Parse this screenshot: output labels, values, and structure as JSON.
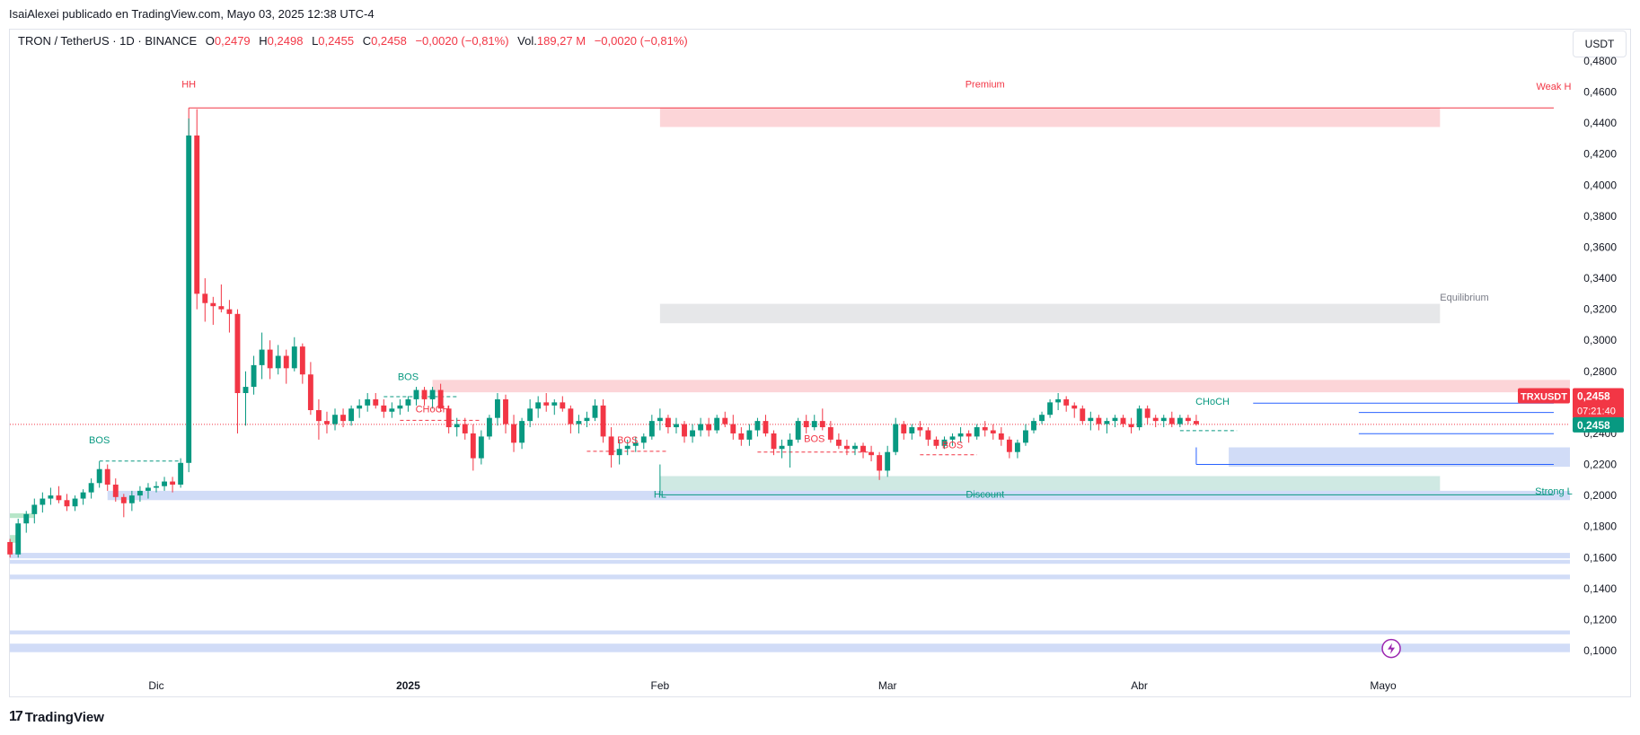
{
  "publisher": "IsaiAlexei publicado en TradingView.com, Mayo 03, 2025 12:38 UTC-4",
  "symbol": {
    "name": "TRON / TetherUS · 1D · BINANCE",
    "o_label": "O",
    "o": "0,2479",
    "h_label": "H",
    "h": "0,2498",
    "l_label": "L",
    "l": "0,2455",
    "c_label": "C",
    "c": "0,2458",
    "change": "−0,0020 (−0,81%)",
    "vol_label": "Vol.",
    "vol": "189,27 M",
    "vol_change": "−0,0020 (−0,81%)"
  },
  "currency": "USDT",
  "footer": {
    "brand": "TradingView",
    "logo_icon": "tradingview-logo-icon"
  },
  "price_tags": {
    "symbol": "TRXUSDT",
    "last": "0,2458",
    "countdown": "07:21:40",
    "last2": "0,2458"
  },
  "colors": {
    "up": "#089981",
    "down": "#f23645",
    "blue": "#2962ff",
    "zone_blue": "#d1dcf7",
    "zone_red": "#fcd5d8",
    "zone_green": "#cfe9e3",
    "zone_gray": "#e6e7e9"
  },
  "chart_data": {
    "type": "candlestick",
    "y_ticks": [
      "0,4800",
      "0,4600",
      "0,4400",
      "0,4200",
      "0,4000",
      "0,3800",
      "0,3600",
      "0,3400",
      "0,3200",
      "0,3000",
      "0,2800",
      "0,2600",
      "0,2400",
      "0,2200",
      "0,2000",
      "0,1800",
      "0,1600",
      "0,1400",
      "0,1200",
      "0,1000"
    ],
    "ylim": [
      0.09,
      0.49
    ],
    "x_labels": [
      {
        "text": "Dic",
        "date": "2024-12-01"
      },
      {
        "text": "2025",
        "date": "2025-01-01"
      },
      {
        "text": "Feb",
        "date": "2025-02-01"
      },
      {
        "text": "Mar",
        "date": "2025-03-01"
      },
      {
        "text": "Abr",
        "date": "2025-04-01"
      },
      {
        "text": "Mayo",
        "date": "2025-05-01"
      }
    ],
    "candles_start": "2024-11-13",
    "candles": [
      [
        0.17,
        0.172,
        0.16,
        0.162
      ],
      [
        0.162,
        0.185,
        0.16,
        0.182
      ],
      [
        0.182,
        0.19,
        0.176,
        0.188
      ],
      [
        0.188,
        0.198,
        0.182,
        0.194
      ],
      [
        0.194,
        0.202,
        0.189,
        0.198
      ],
      [
        0.198,
        0.205,
        0.194,
        0.2
      ],
      [
        0.2,
        0.206,
        0.195,
        0.197
      ],
      [
        0.197,
        0.201,
        0.19,
        0.193
      ],
      [
        0.193,
        0.2,
        0.19,
        0.198
      ],
      [
        0.198,
        0.204,
        0.194,
        0.202
      ],
      [
        0.202,
        0.211,
        0.198,
        0.208
      ],
      [
        0.208,
        0.222,
        0.205,
        0.217
      ],
      [
        0.217,
        0.22,
        0.203,
        0.207
      ],
      [
        0.207,
        0.211,
        0.196,
        0.199
      ],
      [
        0.199,
        0.201,
        0.186,
        0.195
      ],
      [
        0.195,
        0.203,
        0.19,
        0.2
      ],
      [
        0.2,
        0.206,
        0.196,
        0.203
      ],
      [
        0.203,
        0.208,
        0.198,
        0.205
      ],
      [
        0.205,
        0.209,
        0.202,
        0.206
      ],
      [
        0.206,
        0.212,
        0.203,
        0.209
      ],
      [
        0.209,
        0.212,
        0.202,
        0.207
      ],
      [
        0.207,
        0.224,
        0.205,
        0.221
      ],
      [
        0.221,
        0.443,
        0.215,
        0.432
      ],
      [
        0.432,
        0.449,
        0.32,
        0.33
      ],
      [
        0.33,
        0.34,
        0.312,
        0.324
      ],
      [
        0.324,
        0.328,
        0.31,
        0.322
      ],
      [
        0.322,
        0.336,
        0.318,
        0.32
      ],
      [
        0.32,
        0.326,
        0.305,
        0.317
      ],
      [
        0.317,
        0.32,
        0.24,
        0.266
      ],
      [
        0.266,
        0.28,
        0.245,
        0.27
      ],
      [
        0.27,
        0.29,
        0.265,
        0.284
      ],
      [
        0.284,
        0.305,
        0.275,
        0.294
      ],
      [
        0.294,
        0.3,
        0.275,
        0.282
      ],
      [
        0.282,
        0.297,
        0.278,
        0.29
      ],
      [
        0.29,
        0.294,
        0.272,
        0.282
      ],
      [
        0.282,
        0.302,
        0.28,
        0.296
      ],
      [
        0.296,
        0.298,
        0.272,
        0.278
      ],
      [
        0.278,
        0.286,
        0.252,
        0.255
      ],
      [
        0.255,
        0.262,
        0.236,
        0.248
      ],
      [
        0.248,
        0.254,
        0.24,
        0.246
      ],
      [
        0.246,
        0.256,
        0.242,
        0.252
      ],
      [
        0.252,
        0.256,
        0.244,
        0.248
      ],
      [
        0.248,
        0.258,
        0.245,
        0.256
      ],
      [
        0.256,
        0.262,
        0.25,
        0.258
      ],
      [
        0.258,
        0.266,
        0.254,
        0.262
      ],
      [
        0.262,
        0.266,
        0.256,
        0.258
      ],
      [
        0.258,
        0.262,
        0.25,
        0.254
      ],
      [
        0.254,
        0.26,
        0.25,
        0.256
      ],
      [
        0.256,
        0.262,
        0.252,
        0.258
      ],
      [
        0.258,
        0.264,
        0.254,
        0.262
      ],
      [
        0.262,
        0.27,
        0.258,
        0.268
      ],
      [
        0.268,
        0.27,
        0.258,
        0.262
      ],
      [
        0.262,
        0.27,
        0.256,
        0.268
      ],
      [
        0.268,
        0.272,
        0.254,
        0.256
      ],
      [
        0.256,
        0.258,
        0.24,
        0.244
      ],
      [
        0.244,
        0.25,
        0.238,
        0.246
      ],
      [
        0.246,
        0.25,
        0.236,
        0.24
      ],
      [
        0.24,
        0.246,
        0.216,
        0.224
      ],
      [
        0.224,
        0.242,
        0.22,
        0.238
      ],
      [
        0.238,
        0.252,
        0.236,
        0.25
      ],
      [
        0.25,
        0.266,
        0.245,
        0.262
      ],
      [
        0.262,
        0.265,
        0.24,
        0.246
      ],
      [
        0.246,
        0.252,
        0.228,
        0.234
      ],
      [
        0.234,
        0.25,
        0.23,
        0.248
      ],
      [
        0.248,
        0.262,
        0.244,
        0.256
      ],
      [
        0.256,
        0.264,
        0.25,
        0.26
      ],
      [
        0.26,
        0.266,
        0.254,
        0.258
      ],
      [
        0.258,
        0.262,
        0.252,
        0.26
      ],
      [
        0.26,
        0.264,
        0.254,
        0.256
      ],
      [
        0.256,
        0.258,
        0.24,
        0.246
      ],
      [
        0.246,
        0.252,
        0.24,
        0.248
      ],
      [
        0.248,
        0.254,
        0.244,
        0.25
      ],
      [
        0.25,
        0.262,
        0.248,
        0.258
      ],
      [
        0.258,
        0.262,
        0.234,
        0.238
      ],
      [
        0.238,
        0.244,
        0.218,
        0.226
      ],
      [
        0.226,
        0.236,
        0.22,
        0.23
      ],
      [
        0.23,
        0.236,
        0.226,
        0.232
      ],
      [
        0.232,
        0.238,
        0.228,
        0.234
      ],
      [
        0.234,
        0.24,
        0.23,
        0.238
      ],
      [
        0.238,
        0.252,
        0.236,
        0.248
      ],
      [
        0.248,
        0.256,
        0.242,
        0.25
      ],
      [
        0.25,
        0.252,
        0.24,
        0.244
      ],
      [
        0.244,
        0.25,
        0.24,
        0.246
      ],
      [
        0.246,
        0.248,
        0.234,
        0.238
      ],
      [
        0.238,
        0.246,
        0.234,
        0.242
      ],
      [
        0.242,
        0.25,
        0.238,
        0.246
      ],
      [
        0.246,
        0.25,
        0.238,
        0.242
      ],
      [
        0.242,
        0.252,
        0.24,
        0.25
      ],
      [
        0.25,
        0.254,
        0.244,
        0.246
      ],
      [
        0.246,
        0.252,
        0.236,
        0.24
      ],
      [
        0.24,
        0.244,
        0.232,
        0.236
      ],
      [
        0.236,
        0.246,
        0.232,
        0.242
      ],
      [
        0.242,
        0.25,
        0.238,
        0.248
      ],
      [
        0.248,
        0.252,
        0.238,
        0.24
      ],
      [
        0.24,
        0.242,
        0.226,
        0.23
      ],
      [
        0.23,
        0.236,
        0.224,
        0.232
      ],
      [
        0.232,
        0.24,
        0.218,
        0.236
      ],
      [
        0.236,
        0.25,
        0.234,
        0.248
      ],
      [
        0.248,
        0.252,
        0.24,
        0.244
      ],
      [
        0.244,
        0.252,
        0.242,
        0.248
      ],
      [
        0.248,
        0.256,
        0.242,
        0.244
      ],
      [
        0.244,
        0.248,
        0.234,
        0.236
      ],
      [
        0.236,
        0.24,
        0.23,
        0.232
      ],
      [
        0.232,
        0.236,
        0.226,
        0.23
      ],
      [
        0.23,
        0.234,
        0.226,
        0.232
      ],
      [
        0.232,
        0.234,
        0.224,
        0.228
      ],
      [
        0.228,
        0.232,
        0.222,
        0.226
      ],
      [
        0.226,
        0.228,
        0.21,
        0.216
      ],
      [
        0.216,
        0.232,
        0.212,
        0.228
      ],
      [
        0.228,
        0.25,
        0.226,
        0.246
      ],
      [
        0.246,
        0.248,
        0.236,
        0.24
      ],
      [
        0.24,
        0.246,
        0.236,
        0.244
      ],
      [
        0.244,
        0.248,
        0.238,
        0.242
      ],
      [
        0.242,
        0.244,
        0.232,
        0.236
      ],
      [
        0.236,
        0.238,
        0.23,
        0.232
      ],
      [
        0.232,
        0.238,
        0.23,
        0.236
      ],
      [
        0.236,
        0.24,
        0.232,
        0.238
      ],
      [
        0.238,
        0.244,
        0.234,
        0.24
      ],
      [
        0.24,
        0.242,
        0.234,
        0.238
      ],
      [
        0.238,
        0.246,
        0.236,
        0.244
      ],
      [
        0.244,
        0.248,
        0.238,
        0.242
      ],
      [
        0.242,
        0.246,
        0.236,
        0.24
      ],
      [
        0.24,
        0.244,
        0.232,
        0.236
      ],
      [
        0.236,
        0.238,
        0.224,
        0.228
      ],
      [
        0.228,
        0.236,
        0.224,
        0.234
      ],
      [
        0.234,
        0.246,
        0.232,
        0.242
      ],
      [
        0.242,
        0.25,
        0.24,
        0.248
      ],
      [
        0.248,
        0.254,
        0.246,
        0.252
      ],
      [
        0.252,
        0.262,
        0.25,
        0.26
      ],
      [
        0.26,
        0.266,
        0.255,
        0.262
      ],
      [
        0.262,
        0.264,
        0.254,
        0.258
      ],
      [
        0.258,
        0.26,
        0.25,
        0.256
      ],
      [
        0.256,
        0.258,
        0.246,
        0.248
      ],
      [
        0.248,
        0.254,
        0.242,
        0.25
      ],
      [
        0.25,
        0.252,
        0.242,
        0.246
      ],
      [
        0.246,
        0.25,
        0.24,
        0.248
      ],
      [
        0.248,
        0.252,
        0.244,
        0.25
      ],
      [
        0.25,
        0.252,
        0.244,
        0.246
      ],
      [
        0.246,
        0.25,
        0.24,
        0.244
      ],
      [
        0.244,
        0.258,
        0.242,
        0.256
      ],
      [
        0.256,
        0.258,
        0.246,
        0.25
      ],
      [
        0.25,
        0.252,
        0.244,
        0.248
      ],
      [
        0.248,
        0.252,
        0.244,
        0.25
      ],
      [
        0.25,
        0.254,
        0.244,
        0.246
      ],
      [
        0.246,
        0.252,
        0.244,
        0.25
      ],
      [
        0.25,
        0.252,
        0.246,
        0.248
      ],
      [
        0.248,
        0.252,
        0.245,
        0.246
      ]
    ],
    "annotations": [
      {
        "text": "HH",
        "date": "2024-12-05",
        "price": 0.463,
        "color": "#f23645"
      },
      {
        "text": "Premium",
        "date": "2025-03-13",
        "price": 0.463,
        "color": "#f23645"
      },
      {
        "text": "Weak H",
        "date": "2025-05-22",
        "price": 0.4615,
        "color": "#f23645"
      },
      {
        "text": "Equilibrium",
        "date": "2025-05-11",
        "price": 0.3255,
        "color": "#787b86"
      },
      {
        "text": "BOS",
        "date": "2024-11-24",
        "price": 0.2335,
        "color": "#089981"
      },
      {
        "text": "BOS",
        "date": "2025-01-01",
        "price": 0.2745,
        "color": "#089981"
      },
      {
        "text": "CHoCH",
        "date": "2025-01-04",
        "price": 0.2535,
        "color": "#f23645"
      },
      {
        "text": "BOS",
        "date": "2025-01-28",
        "price": 0.2335,
        "color": "#f23645"
      },
      {
        "text": "BOS",
        "date": "2025-02-20",
        "price": 0.2345,
        "color": "#f23645"
      },
      {
        "text": "BOS",
        "date": "2025-03-09",
        "price": 0.2305,
        "color": "#f23645"
      },
      {
        "text": "CHoCH",
        "date": "2025-04-10",
        "price": 0.2585,
        "color": "#089981"
      },
      {
        "text": "HL",
        "date": "2025-02-01",
        "price": 0.1985,
        "color": "#089981"
      },
      {
        "text": "Discount",
        "date": "2025-03-13",
        "price": 0.1985,
        "color": "#089981"
      },
      {
        "text": "Strong L",
        "date": "2025-05-22",
        "price": 0.2005,
        "color": "#089981"
      }
    ]
  }
}
